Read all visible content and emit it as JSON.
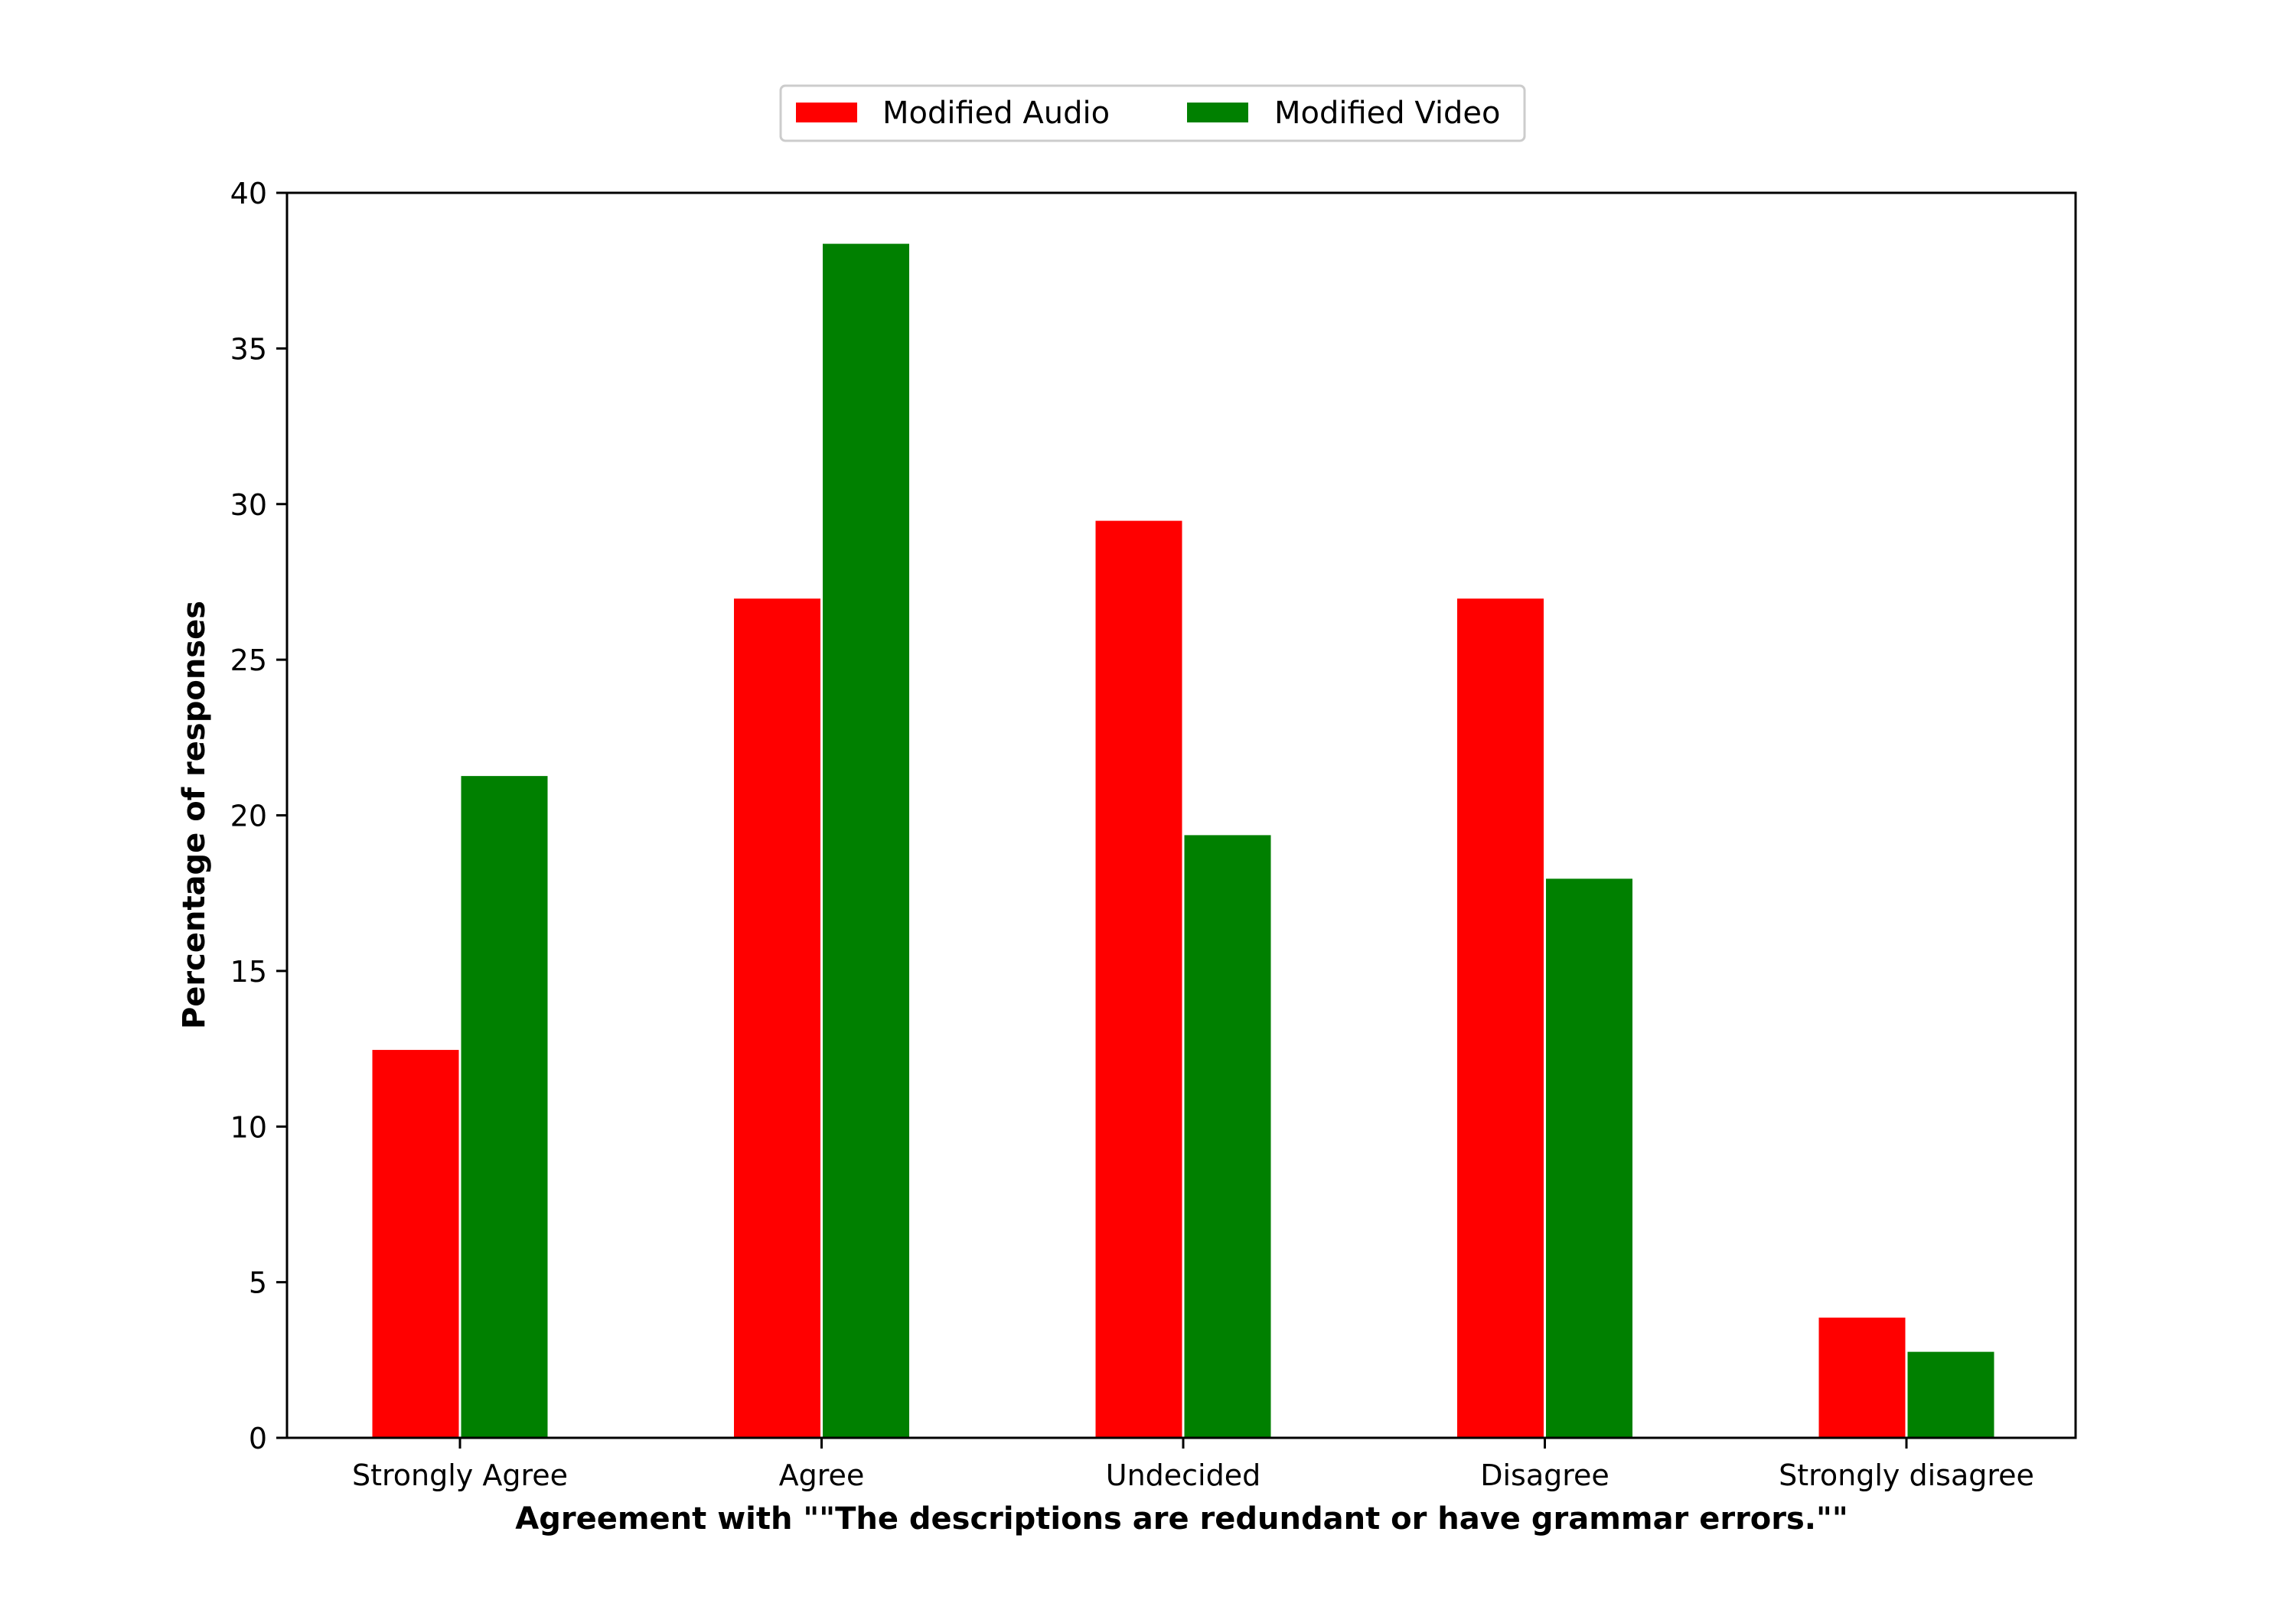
{
  "chart_data": {
    "type": "bar",
    "title": "",
    "xlabel": "Agreement with \"\"The descriptions are redundant or have grammar errors.\"\"",
    "ylabel": "Percentage of responses",
    "categories": [
      "Strongly Agree",
      "Agree",
      "Undecided",
      "Disagree",
      "Strongly disagree"
    ],
    "series": [
      {
        "name": "Modified Audio",
        "color": "#ff0000",
        "values": [
          12.5,
          27.0,
          29.5,
          27.0,
          3.9
        ]
      },
      {
        "name": "Modified Video",
        "color": "#008000",
        "values": [
          21.3,
          38.4,
          19.4,
          18.0,
          2.8
        ]
      }
    ],
    "ylim": [
      0,
      40
    ],
    "yticks": [
      "0",
      "5",
      "10",
      "15",
      "20",
      "25",
      "30",
      "35",
      "40"
    ],
    "grid": false,
    "legend_position": "top-center"
  }
}
